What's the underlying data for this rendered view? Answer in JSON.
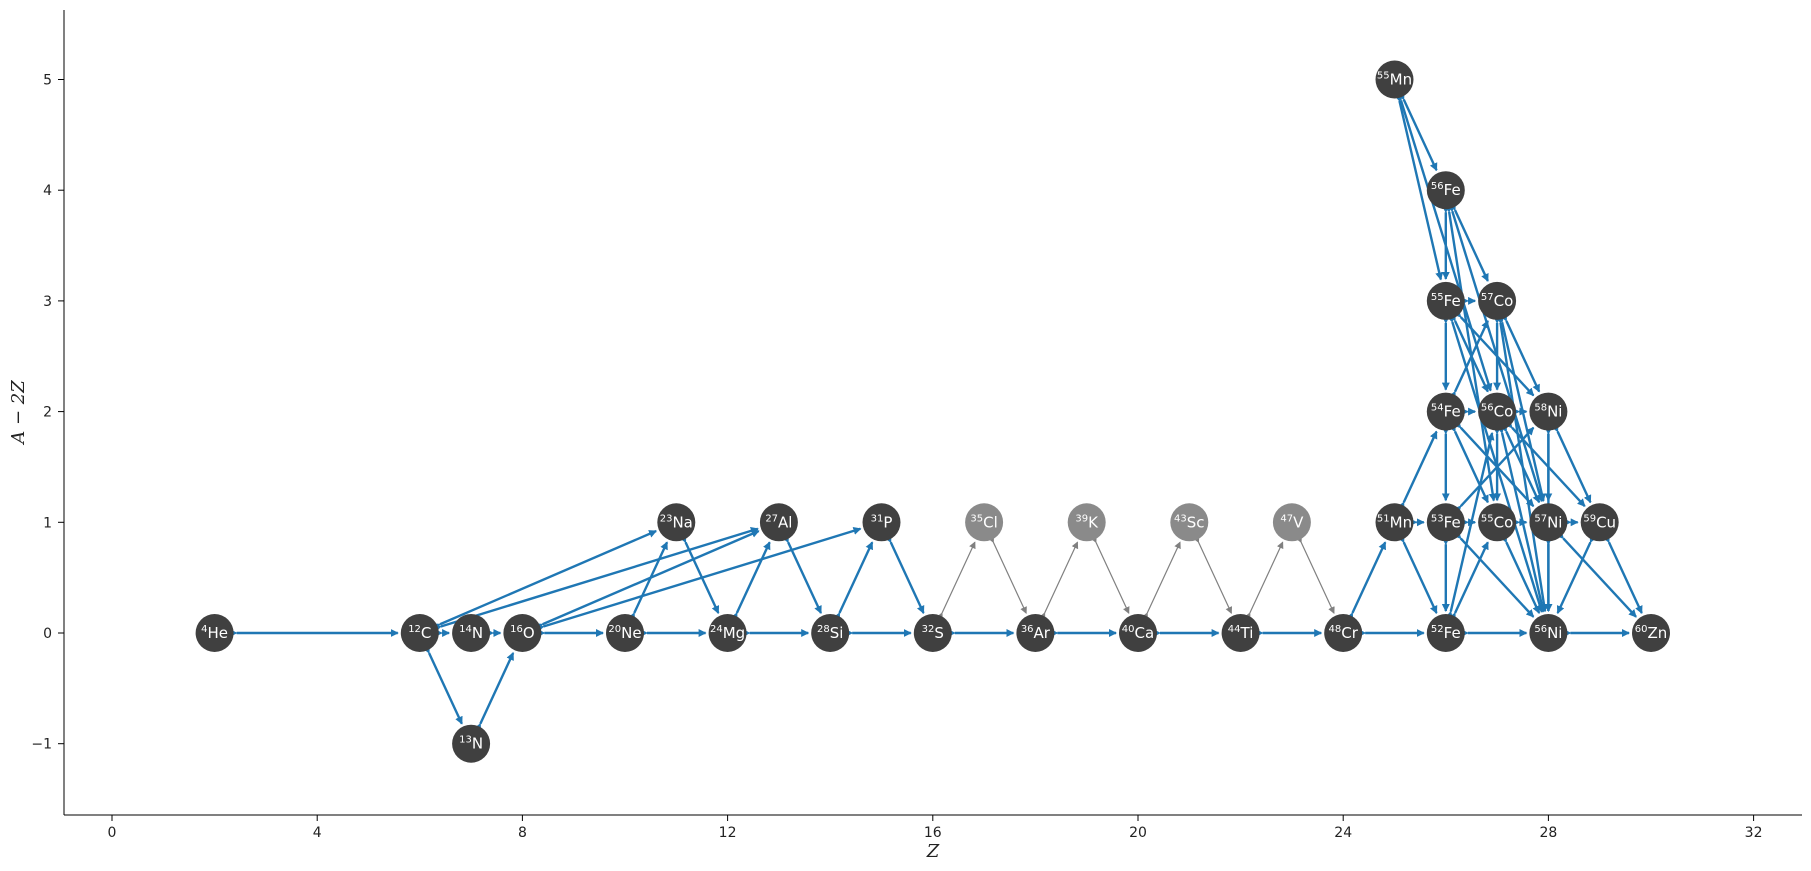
{
  "chart_data": {
    "type": "network",
    "xlabel": "Z",
    "ylabel": "A − 2Z",
    "xlim": [
      -1,
      33
    ],
    "ylim": [
      -1.6,
      5.6
    ],
    "x_ticks": [
      0,
      4,
      8,
      12,
      16,
      20,
      24,
      28,
      32
    ],
    "y_ticks": [
      -1,
      0,
      1,
      2,
      3,
      4,
      5
    ],
    "x_tick_labels": [
      "0",
      "4",
      "8",
      "12",
      "16",
      "20",
      "24",
      "28",
      "32"
    ],
    "y_tick_labels": [
      "−1",
      "0",
      "1",
      "2",
      "3",
      "4",
      "5"
    ],
    "colors": {
      "active_node": "#404040",
      "inactive_node": "#8a8a8a",
      "active_link": "#1f77b4",
      "inactive_link": "#808080",
      "label": "#ffffff"
    },
    "nodes": [
      {
        "id": "he4",
        "mass": "4",
        "el": "He",
        "Z": 2,
        "N2Z": 0,
        "active": true
      },
      {
        "id": "c12",
        "mass": "12",
        "el": "C",
        "Z": 6,
        "N2Z": 0,
        "active": true
      },
      {
        "id": "n13",
        "mass": "13",
        "el": "N",
        "Z": 7,
        "N2Z": -1,
        "active": true
      },
      {
        "id": "n14",
        "mass": "14",
        "el": "N",
        "Z": 7,
        "N2Z": 0,
        "active": true
      },
      {
        "id": "o16",
        "mass": "16",
        "el": "O",
        "Z": 8,
        "N2Z": 0,
        "active": true
      },
      {
        "id": "ne20",
        "mass": "20",
        "el": "Ne",
        "Z": 10,
        "N2Z": 0,
        "active": true
      },
      {
        "id": "na23",
        "mass": "23",
        "el": "Na",
        "Z": 11,
        "N2Z": 1,
        "active": true
      },
      {
        "id": "mg24",
        "mass": "24",
        "el": "Mg",
        "Z": 12,
        "N2Z": 0,
        "active": true
      },
      {
        "id": "al27",
        "mass": "27",
        "el": "Al",
        "Z": 13,
        "N2Z": 1,
        "active": true
      },
      {
        "id": "si28",
        "mass": "28",
        "el": "Si",
        "Z": 14,
        "N2Z": 0,
        "active": true
      },
      {
        "id": "p31",
        "mass": "31",
        "el": "P",
        "Z": 15,
        "N2Z": 1,
        "active": true
      },
      {
        "id": "s32",
        "mass": "32",
        "el": "S",
        "Z": 16,
        "N2Z": 0,
        "active": true
      },
      {
        "id": "cl35",
        "mass": "35",
        "el": "Cl",
        "Z": 17,
        "N2Z": 1,
        "active": false
      },
      {
        "id": "ar36",
        "mass": "36",
        "el": "Ar",
        "Z": 18,
        "N2Z": 0,
        "active": true
      },
      {
        "id": "k39",
        "mass": "39",
        "el": "K",
        "Z": 19,
        "N2Z": 1,
        "active": false
      },
      {
        "id": "ca40",
        "mass": "40",
        "el": "Ca",
        "Z": 20,
        "N2Z": 0,
        "active": true
      },
      {
        "id": "sc43",
        "mass": "43",
        "el": "Sc",
        "Z": 21,
        "N2Z": 1,
        "active": false
      },
      {
        "id": "ti44",
        "mass": "44",
        "el": "Ti",
        "Z": 22,
        "N2Z": 0,
        "active": true
      },
      {
        "id": "v47",
        "mass": "47",
        "el": "V",
        "Z": 23,
        "N2Z": 1,
        "active": false
      },
      {
        "id": "cr48",
        "mass": "48",
        "el": "Cr",
        "Z": 24,
        "N2Z": 0,
        "active": true
      },
      {
        "id": "mn51",
        "mass": "51",
        "el": "Mn",
        "Z": 25,
        "N2Z": 1,
        "active": true
      },
      {
        "id": "mn55",
        "mass": "55",
        "el": "Mn",
        "Z": 25,
        "N2Z": 5,
        "active": true
      },
      {
        "id": "fe52",
        "mass": "52",
        "el": "Fe",
        "Z": 26,
        "N2Z": 0,
        "active": true
      },
      {
        "id": "fe53",
        "mass": "53",
        "el": "Fe",
        "Z": 26,
        "N2Z": 1,
        "active": true
      },
      {
        "id": "fe54",
        "mass": "54",
        "el": "Fe",
        "Z": 26,
        "N2Z": 2,
        "active": true
      },
      {
        "id": "fe55",
        "mass": "55",
        "el": "Fe",
        "Z": 26,
        "N2Z": 3,
        "active": true
      },
      {
        "id": "fe56",
        "mass": "56",
        "el": "Fe",
        "Z": 26,
        "N2Z": 4,
        "active": true
      },
      {
        "id": "co55",
        "mass": "55",
        "el": "Co",
        "Z": 27,
        "N2Z": 1,
        "active": true
      },
      {
        "id": "co56",
        "mass": "56",
        "el": "Co",
        "Z": 27,
        "N2Z": 2,
        "active": true
      },
      {
        "id": "co57",
        "mass": "57",
        "el": "Co",
        "Z": 27,
        "N2Z": 3,
        "active": true
      },
      {
        "id": "ni56",
        "mass": "56",
        "el": "Ni",
        "Z": 28,
        "N2Z": 0,
        "active": true
      },
      {
        "id": "ni57",
        "mass": "57",
        "el": "Ni",
        "Z": 28,
        "N2Z": 1,
        "active": true
      },
      {
        "id": "ni58",
        "mass": "58",
        "el": "Ni",
        "Z": 28,
        "N2Z": 2,
        "active": true
      },
      {
        "id": "cu59",
        "mass": "59",
        "el": "Cu",
        "Z": 29,
        "N2Z": 1,
        "active": true
      },
      {
        "id": "zn60",
        "mass": "60",
        "el": "Zn",
        "Z": 30,
        "N2Z": 0,
        "active": true
      }
    ],
    "links": [
      [
        "he4",
        "c12",
        true
      ],
      [
        "c12",
        "n14",
        true
      ],
      [
        "n14",
        "o16",
        true
      ],
      [
        "c12",
        "n13",
        true
      ],
      [
        "n13",
        "o16",
        true
      ],
      [
        "o16",
        "ne20",
        true
      ],
      [
        "ne20",
        "mg24",
        true
      ],
      [
        "mg24",
        "si28",
        true
      ],
      [
        "si28",
        "s32",
        true
      ],
      [
        "s32",
        "ar36",
        true
      ],
      [
        "ar36",
        "ca40",
        true
      ],
      [
        "ca40",
        "ti44",
        true
      ],
      [
        "ti44",
        "cr48",
        true
      ],
      [
        "cr48",
        "fe52",
        true
      ],
      [
        "fe52",
        "ni56",
        true
      ],
      [
        "ni56",
        "zn60",
        true
      ],
      [
        "c12",
        "na23",
        true
      ],
      [
        "c12",
        "al27",
        true
      ],
      [
        "o16",
        "al27",
        true
      ],
      [
        "o16",
        "p31",
        true
      ],
      [
        "ne20",
        "na23",
        true
      ],
      [
        "na23",
        "mg24",
        true
      ],
      [
        "mg24",
        "al27",
        true
      ],
      [
        "al27",
        "si28",
        true
      ],
      [
        "si28",
        "p31",
        true
      ],
      [
        "p31",
        "s32",
        true
      ],
      [
        "s32",
        "cl35",
        false
      ],
      [
        "cl35",
        "ar36",
        false
      ],
      [
        "ar36",
        "k39",
        false
      ],
      [
        "k39",
        "ca40",
        false
      ],
      [
        "ca40",
        "sc43",
        false
      ],
      [
        "sc43",
        "ti44",
        false
      ],
      [
        "ti44",
        "v47",
        false
      ],
      [
        "v47",
        "cr48",
        false
      ],
      [
        "cr48",
        "mn51",
        true
      ],
      [
        "mn51",
        "fe52",
        true
      ],
      [
        "mn51",
        "fe53",
        true
      ],
      [
        "mn51",
        "fe54",
        true
      ],
      [
        "mn55",
        "fe56",
        true
      ],
      [
        "mn55",
        "fe55",
        true
      ],
      [
        "mn55",
        "co56",
        true
      ],
      [
        "fe56",
        "fe55",
        true
      ],
      [
        "fe56",
        "co57",
        true
      ],
      [
        "fe56",
        "co55",
        true
      ],
      [
        "fe56",
        "ni57",
        true
      ],
      [
        "fe55",
        "fe54",
        true
      ],
      [
        "fe55",
        "co56",
        true
      ],
      [
        "fe55",
        "ni58",
        true
      ],
      [
        "fe55",
        "ni56",
        true
      ],
      [
        "fe55",
        "co57",
        true
      ],
      [
        "fe54",
        "fe53",
        true
      ],
      [
        "fe54",
        "co56",
        true
      ],
      [
        "fe54",
        "co55",
        true
      ],
      [
        "fe54",
        "ni57",
        true
      ],
      [
        "fe54",
        "co57",
        true
      ],
      [
        "fe53",
        "fe52",
        true
      ],
      [
        "fe53",
        "co55",
        true
      ],
      [
        "fe53",
        "ni56",
        true
      ],
      [
        "fe53",
        "ni58",
        true
      ],
      [
        "fe52",
        "co55",
        true
      ],
      [
        "fe52",
        "co56",
        true
      ],
      [
        "co57",
        "co56",
        true
      ],
      [
        "co57",
        "ni58",
        true
      ],
      [
        "co57",
        "ni56",
        true
      ],
      [
        "co57",
        "ni57",
        true
      ],
      [
        "co56",
        "co55",
        true
      ],
      [
        "co56",
        "ni58",
        true
      ],
      [
        "co56",
        "ni57",
        true
      ],
      [
        "co56",
        "cu59",
        true
      ],
      [
        "co56",
        "ni56",
        true
      ],
      [
        "co55",
        "ni56",
        true
      ],
      [
        "co55",
        "ni57",
        true
      ],
      [
        "ni58",
        "ni57",
        true
      ],
      [
        "ni58",
        "cu59",
        true
      ],
      [
        "ni58",
        "ni56",
        true
      ],
      [
        "ni57",
        "ni56",
        true
      ],
      [
        "ni57",
        "cu59",
        true
      ],
      [
        "ni57",
        "zn60",
        true
      ],
      [
        "cu59",
        "ni56",
        true
      ],
      [
        "cu59",
        "zn60",
        true
      ]
    ]
  }
}
